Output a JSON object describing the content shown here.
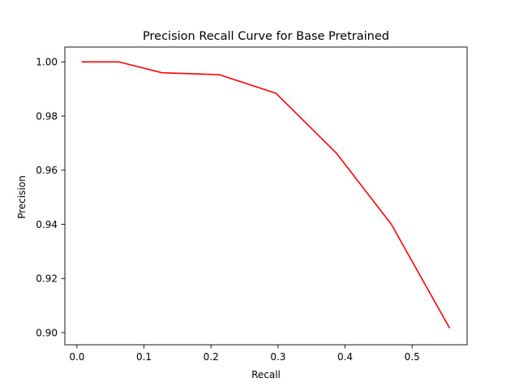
{
  "chart_data": {
    "type": "line",
    "title": "Precision Recall Curve for Base Pretrained",
    "xlabel": "Recall",
    "ylabel": "Precision",
    "xlim": [
      -0.018,
      0.582
    ],
    "ylim": [
      0.8955,
      1.0055
    ],
    "xticks": [
      0.0,
      0.1,
      0.2,
      0.3,
      0.4,
      0.5
    ],
    "xtick_labels": [
      "0.0",
      "0.1",
      "0.2",
      "0.3",
      "0.4",
      "0.5"
    ],
    "yticks": [
      0.9,
      0.92,
      0.94,
      0.96,
      0.98,
      1.0
    ],
    "ytick_labels": [
      "0.90",
      "0.92",
      "0.94",
      "0.96",
      "0.98",
      "1.00"
    ],
    "grid": false,
    "series": [
      {
        "color": "#ff0000",
        "x": [
          0.007,
          0.063,
          0.127,
          0.212,
          0.297,
          0.387,
          0.469,
          0.556
        ],
        "y": [
          1.0,
          1.0,
          0.996,
          0.9953,
          0.9884,
          0.9663,
          0.94,
          0.9016
        ]
      }
    ]
  }
}
